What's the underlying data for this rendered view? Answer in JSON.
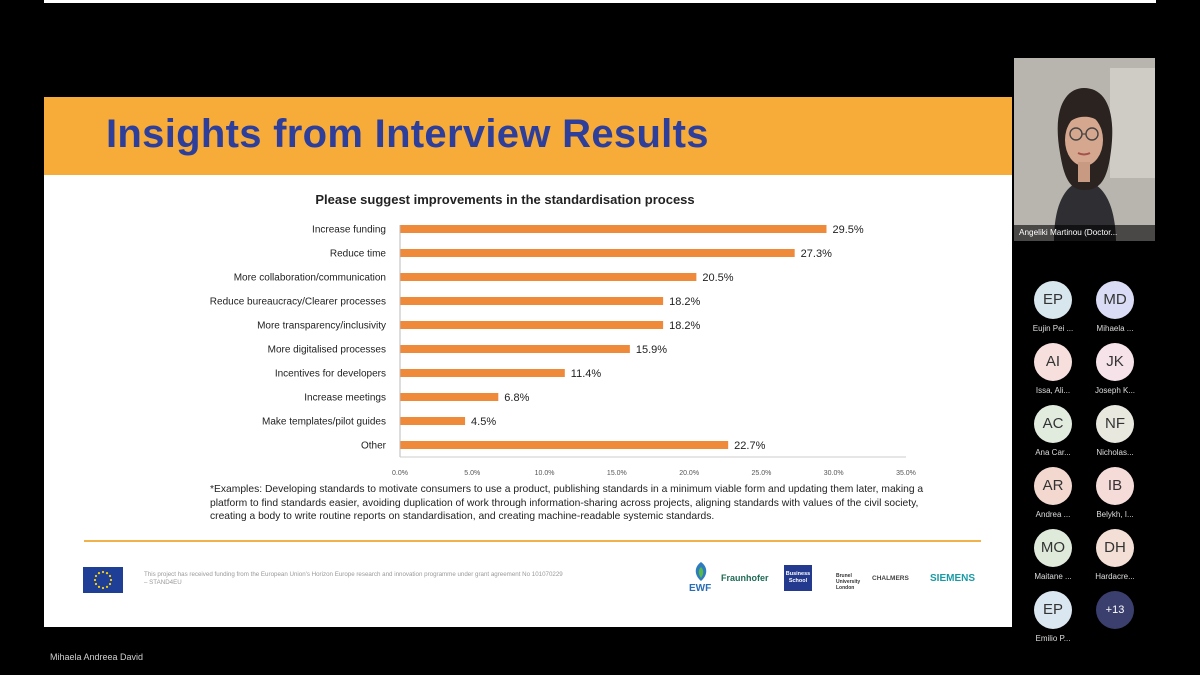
{
  "presentation": {
    "slide_title": "Insights from Interview Results",
    "footnote": "*Examples: Developing standards to motivate consumers to use a product, publishing standards in a minimum viable form and updating them later, making a platform to find standards easier, avoiding duplication of work through information-sharing across projects, aligning standards with values of the civil society, creating a body to write routine reports on standardisation, and creating machine-readable systemic standards.",
    "funding_text": "This project has received funding from the European Union's Horizon Europe research and innovation programme under grant agreement No 101070229 – STAND4EU",
    "logos": {
      "ewf": "EWF",
      "fraunhofer": "Fraunhofer",
      "business_school": "Business School",
      "brunel": "Brunel University London",
      "chalmers": "CHALMERS",
      "siemens": "SIEMENS"
    },
    "colors": {
      "banner": "#f7ac3a",
      "title": "#2d3e9b",
      "bar": "#ef8a3a"
    }
  },
  "chart_data": {
    "type": "bar",
    "orientation": "horizontal",
    "title": "Please suggest improvements in the standardisation process",
    "categories": [
      "Increase funding",
      "Reduce time",
      "More collaboration/communication",
      "Reduce bureaucracy/Clearer processes",
      "More transparency/inclusivity",
      "More digitalised processes",
      "Incentives for developers",
      "Increase meetings",
      "Make templates/pilot guides",
      "Other"
    ],
    "values": [
      29.5,
      27.3,
      20.5,
      18.2,
      18.2,
      15.9,
      11.4,
      6.8,
      4.5,
      22.7
    ],
    "data_labels": [
      "29.5%",
      "27.3%",
      "20.5%",
      "18.2%",
      "18.2%",
      "15.9%",
      "11.4%",
      "6.8%",
      "4.5%",
      "22.7%"
    ],
    "xlim": [
      0,
      35
    ],
    "xticks": [
      "0.0%",
      "5.0%",
      "10.0%",
      "15.0%",
      "20.0%",
      "25.0%",
      "30.0%",
      "35.0%"
    ],
    "grid": false,
    "legend": "none"
  },
  "meeting": {
    "presenter_name": "Mihaela Andreea David",
    "active_speaker": "Angeliki Martinou (Doctor...",
    "participants": [
      {
        "initials": "EP",
        "name": "Eujin Pei ...",
        "color": "#d8e6ee"
      },
      {
        "initials": "MD",
        "name": "Mihaela ...",
        "color": "#d9dcf4"
      },
      {
        "initials": "AI",
        "name": "Issa, Ali...",
        "color": "#f6dfdc"
      },
      {
        "initials": "JK",
        "name": "Joseph K...",
        "color": "#f6e3ea"
      },
      {
        "initials": "AC",
        "name": "Ana Car...",
        "color": "#e1ecdf"
      },
      {
        "initials": "NF",
        "name": "Nicholas...",
        "color": "#e8e8df"
      },
      {
        "initials": "AR",
        "name": "Andrea ...",
        "color": "#f3d8cf"
      },
      {
        "initials": "IB",
        "name": "Belykh, I...",
        "color": "#f6dcd8"
      },
      {
        "initials": "MO",
        "name": "Maitane ...",
        "color": "#dfeadb"
      },
      {
        "initials": "DH",
        "name": "Hardacre...",
        "color": "#f3dfd6"
      },
      {
        "initials": "EP",
        "name": "Emilio P...",
        "color": "#dbe7f0"
      }
    ],
    "more_count": "+13"
  }
}
